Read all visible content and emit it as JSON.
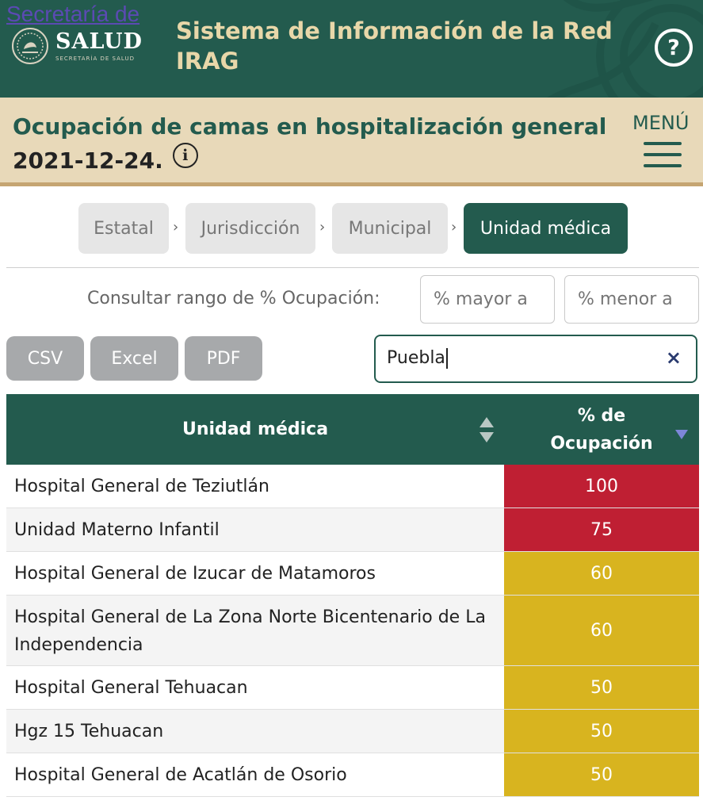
{
  "header": {
    "logo_link": "Secretaría de",
    "logo_name": "SALUD",
    "logo_sub": "SECRETARÍA DE SALUD",
    "app_title": "Sistema de Información de la Red IRAG",
    "help_symbol": "?",
    "help_icon": "question-circle-icon"
  },
  "subheader": {
    "title": "Ocupación de camas en hospitalización general",
    "date": "2021-12-24.",
    "info_symbol": "i",
    "menu_label": "MENÚ"
  },
  "tabs": [
    {
      "label": "Estatal",
      "active": false
    },
    {
      "label": "Jurisdicción",
      "active": false
    },
    {
      "label": "Municipal",
      "active": false
    },
    {
      "label": "Unidad médica",
      "active": true
    }
  ],
  "tab_separator": "›",
  "range": {
    "label": "Consultar rango de % Ocupación:",
    "min_placeholder": "% mayor a",
    "max_placeholder": "% menor a"
  },
  "export_buttons": [
    "CSV",
    "Excel",
    "PDF"
  ],
  "search": {
    "value": "Puebla",
    "clear_symbol": "×"
  },
  "table": {
    "headers": {
      "unit": "Unidad médica",
      "occupancy_line1": "% de",
      "occupancy_line2": "Ocupación"
    },
    "rows": [
      {
        "unit": "Hospital General de Teziutlán",
        "occupancy": "100",
        "level": "high"
      },
      {
        "unit": "Unidad Materno Infantil",
        "occupancy": "75",
        "level": "high"
      },
      {
        "unit": "Hospital General de Izucar de Matamoros",
        "occupancy": "60",
        "level": "medium"
      },
      {
        "unit": "Hospital General de La Zona Norte Bicentenario de La Independencia",
        "occupancy": "60",
        "level": "medium"
      },
      {
        "unit": "Hospital General Tehuacan",
        "occupancy": "50",
        "level": "medium"
      },
      {
        "unit": "Hgz 15 Tehuacan",
        "occupancy": "50",
        "level": "medium"
      },
      {
        "unit": "Hospital General de Acatlán de Osorio",
        "occupancy": "50",
        "level": "medium"
      }
    ]
  },
  "colors": {
    "brand_green": "#235b4e",
    "brand_gold": "#e8d7a9",
    "occupancy_high": "#bf1f33",
    "occupancy_medium": "#d8b41f"
  }
}
